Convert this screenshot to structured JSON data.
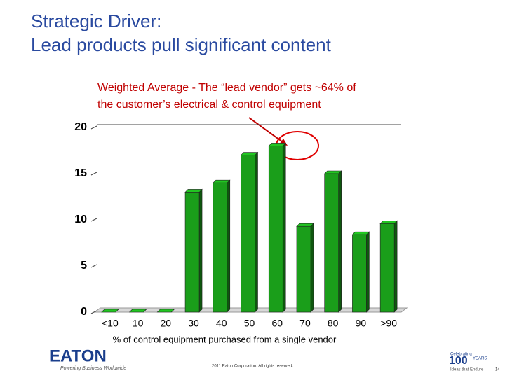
{
  "slide": {
    "title_lines": [
      "Strategic Driver:",
      "Lead products pull significant content"
    ],
    "footer": "2011 Eaton Corporation. All rights reserved.",
    "logo": "EATON",
    "logo_tagline": "Powering Business Worldwide",
    "badge_top": "Celebrating",
    "badge_number": "100",
    "badge_years": "YEARS",
    "badge_tagline": "Ideas that Endure",
    "page_number": "14"
  },
  "chart_data": {
    "type": "bar",
    "annotation_lines": [
      "Weighted Average - The “lead vendor” gets ~64% of",
      "the customer’s electrical & control equipment"
    ],
    "x_label": "% of control equipment purchased from a single vendor",
    "categories": [
      "<10",
      "10",
      "20",
      "30",
      "40",
      "50",
      "60",
      "70",
      "80",
      "90",
      ">90"
    ],
    "values": [
      0,
      0,
      0,
      13,
      14,
      17,
      18,
      9.3,
      15,
      8.4,
      9.6
    ],
    "color": "#1a9e1a",
    "ylim": [
      0,
      20
    ],
    "yticks": [
      0,
      5,
      10,
      15,
      20
    ]
  }
}
